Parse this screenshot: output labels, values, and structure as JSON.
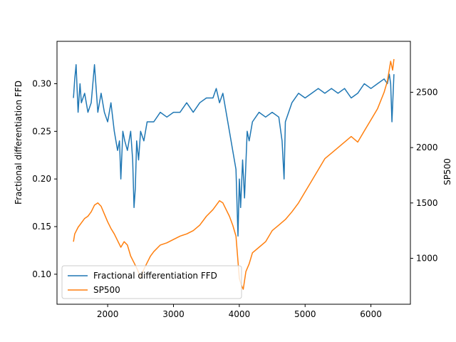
{
  "chart_data": {
    "type": "line",
    "title": "",
    "xlabel": "",
    "ylabel_left": "Fractional differentiation FFD",
    "ylabel_right": "SP500",
    "xlim": [
      1230,
      6600
    ],
    "ylim_left": [
      0.0685,
      0.3445
    ],
    "ylim_right": [
      585,
      2960
    ],
    "x_ticks": [
      2000,
      3000,
      4000,
      5000,
      6000
    ],
    "y_ticks_left": [
      0.1,
      0.15,
      0.2,
      0.25,
      0.3
    ],
    "y_ticks_right": [
      1000,
      1500,
      2000,
      2500
    ],
    "x_tick_labels": [
      "2000",
      "3000",
      "4000",
      "5000",
      "6000"
    ],
    "y_tick_labels_left": [
      "0.10",
      "0.15",
      "0.20",
      "0.25",
      "0.30"
    ],
    "y_tick_labels_right": [
      "1000",
      "1500",
      "2000",
      "2500"
    ],
    "legend_placement": "lower-left",
    "grid": false,
    "series": [
      {
        "name": "Fractional differentiation FFD",
        "axis": "left",
        "color": "#1f77b4",
        "points": [
          [
            1480,
            0.285
          ],
          [
            1500,
            0.305
          ],
          [
            1520,
            0.32
          ],
          [
            1550,
            0.27
          ],
          [
            1580,
            0.3
          ],
          [
            1600,
            0.28
          ],
          [
            1650,
            0.29
          ],
          [
            1700,
            0.27
          ],
          [
            1750,
            0.28
          ],
          [
            1800,
            0.32
          ],
          [
            1850,
            0.27
          ],
          [
            1900,
            0.29
          ],
          [
            1950,
            0.27
          ],
          [
            2000,
            0.26
          ],
          [
            2050,
            0.28
          ],
          [
            2100,
            0.25
          ],
          [
            2150,
            0.23
          ],
          [
            2180,
            0.24
          ],
          [
            2200,
            0.2
          ],
          [
            2230,
            0.25
          ],
          [
            2260,
            0.24
          ],
          [
            2300,
            0.23
          ],
          [
            2350,
            0.25
          ],
          [
            2380,
            0.22
          ],
          [
            2400,
            0.17
          ],
          [
            2420,
            0.19
          ],
          [
            2440,
            0.24
          ],
          [
            2470,
            0.22
          ],
          [
            2500,
            0.25
          ],
          [
            2550,
            0.24
          ],
          [
            2600,
            0.26
          ],
          [
            2700,
            0.26
          ],
          [
            2800,
            0.27
          ],
          [
            2900,
            0.265
          ],
          [
            3000,
            0.27
          ],
          [
            3100,
            0.27
          ],
          [
            3200,
            0.28
          ],
          [
            3300,
            0.27
          ],
          [
            3400,
            0.28
          ],
          [
            3500,
            0.285
          ],
          [
            3600,
            0.285
          ],
          [
            3650,
            0.295
          ],
          [
            3700,
            0.28
          ],
          [
            3750,
            0.29
          ],
          [
            3800,
            0.27
          ],
          [
            3850,
            0.25
          ],
          [
            3900,
            0.23
          ],
          [
            3950,
            0.21
          ],
          [
            3980,
            0.14
          ],
          [
            4000,
            0.2
          ],
          [
            4020,
            0.17
          ],
          [
            4050,
            0.22
          ],
          [
            4080,
            0.18
          ],
          [
            4120,
            0.25
          ],
          [
            4150,
            0.24
          ],
          [
            4200,
            0.26
          ],
          [
            4300,
            0.27
          ],
          [
            4400,
            0.265
          ],
          [
            4500,
            0.27
          ],
          [
            4600,
            0.265
          ],
          [
            4650,
            0.24
          ],
          [
            4680,
            0.2
          ],
          [
            4700,
            0.26
          ],
          [
            4750,
            0.27
          ],
          [
            4800,
            0.28
          ],
          [
            4900,
            0.29
          ],
          [
            5000,
            0.285
          ],
          [
            5100,
            0.29
          ],
          [
            5200,
            0.295
          ],
          [
            5300,
            0.29
          ],
          [
            5400,
            0.295
          ],
          [
            5500,
            0.29
          ],
          [
            5600,
            0.295
          ],
          [
            5700,
            0.285
          ],
          [
            5800,
            0.29
          ],
          [
            5900,
            0.3
          ],
          [
            6000,
            0.295
          ],
          [
            6100,
            0.3
          ],
          [
            6200,
            0.305
          ],
          [
            6250,
            0.3
          ],
          [
            6280,
            0.31
          ],
          [
            6300,
            0.3
          ],
          [
            6320,
            0.26
          ],
          [
            6350,
            0.31
          ]
        ]
      },
      {
        "name": "SP500",
        "axis": "right",
        "color": "#ff7f0e",
        "points": [
          [
            1480,
            1150
          ],
          [
            1500,
            1220
          ],
          [
            1550,
            1280
          ],
          [
            1600,
            1320
          ],
          [
            1650,
            1360
          ],
          [
            1700,
            1380
          ],
          [
            1750,
            1420
          ],
          [
            1800,
            1480
          ],
          [
            1850,
            1500
          ],
          [
            1900,
            1470
          ],
          [
            1950,
            1400
          ],
          [
            2000,
            1330
          ],
          [
            2050,
            1270
          ],
          [
            2100,
            1220
          ],
          [
            2150,
            1160
          ],
          [
            2200,
            1100
          ],
          [
            2250,
            1150
          ],
          [
            2300,
            1120
          ],
          [
            2350,
            1020
          ],
          [
            2400,
            960
          ],
          [
            2450,
            900
          ],
          [
            2500,
            830
          ],
          [
            2550,
            900
          ],
          [
            2600,
            960
          ],
          [
            2650,
            1020
          ],
          [
            2700,
            1060
          ],
          [
            2800,
            1120
          ],
          [
            2900,
            1140
          ],
          [
            3000,
            1170
          ],
          [
            3100,
            1200
          ],
          [
            3200,
            1220
          ],
          [
            3300,
            1250
          ],
          [
            3400,
            1300
          ],
          [
            3500,
            1380
          ],
          [
            3600,
            1440
          ],
          [
            3650,
            1480
          ],
          [
            3700,
            1520
          ],
          [
            3750,
            1500
          ],
          [
            3800,
            1440
          ],
          [
            3850,
            1380
          ],
          [
            3900,
            1300
          ],
          [
            3950,
            1200
          ],
          [
            4000,
            820
          ],
          [
            4030,
            760
          ],
          [
            4060,
            720
          ],
          [
            4100,
            880
          ],
          [
            4150,
            950
          ],
          [
            4200,
            1050
          ],
          [
            4300,
            1100
          ],
          [
            4400,
            1150
          ],
          [
            4500,
            1250
          ],
          [
            4600,
            1300
          ],
          [
            4700,
            1350
          ],
          [
            4800,
            1420
          ],
          [
            4900,
            1500
          ],
          [
            5000,
            1600
          ],
          [
            5100,
            1700
          ],
          [
            5200,
            1800
          ],
          [
            5300,
            1900
          ],
          [
            5400,
            1950
          ],
          [
            5500,
            2000
          ],
          [
            5600,
            2050
          ],
          [
            5700,
            2100
          ],
          [
            5800,
            2050
          ],
          [
            5900,
            2150
          ],
          [
            6000,
            2250
          ],
          [
            6100,
            2350
          ],
          [
            6200,
            2500
          ],
          [
            6250,
            2600
          ],
          [
            6300,
            2780
          ],
          [
            6330,
            2700
          ],
          [
            6350,
            2800
          ]
        ]
      }
    ]
  }
}
